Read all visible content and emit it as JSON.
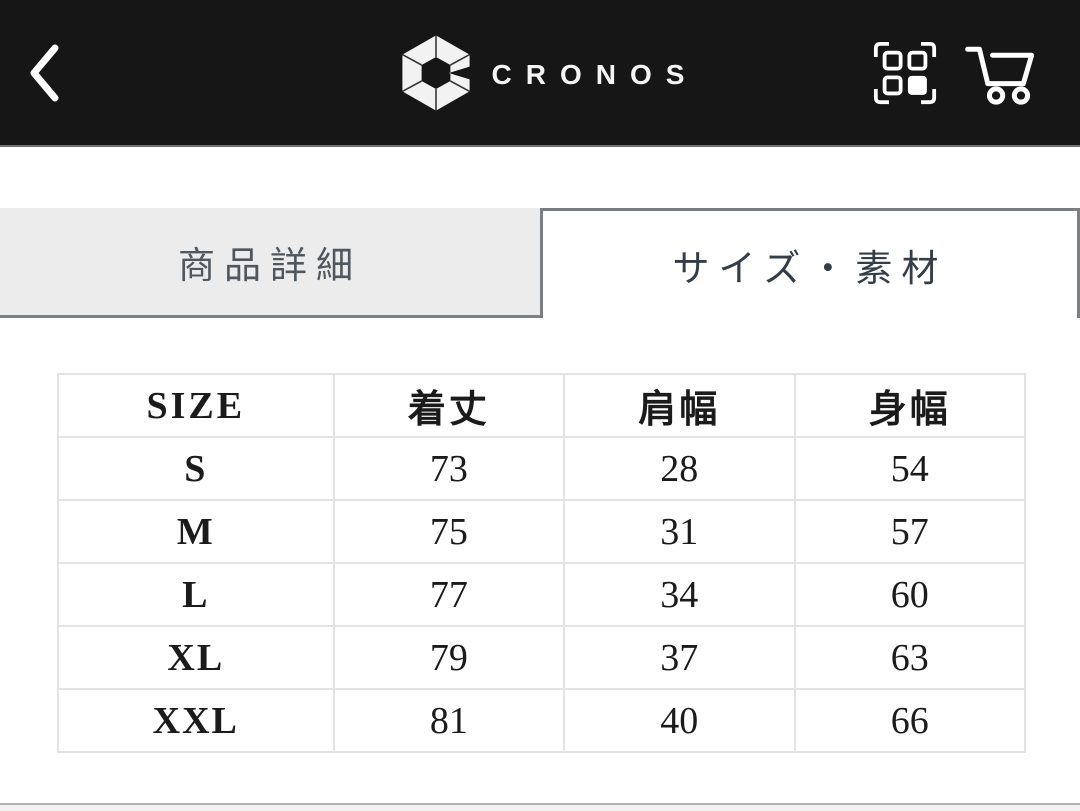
{
  "header": {
    "brand": "CRONOS",
    "back_icon": "chevron-left-icon",
    "scan_icon": "qr-scan-icon",
    "cart_icon": "shopping-cart-icon",
    "background_color": "#161616",
    "foreground_color": "#ffffff"
  },
  "tabs": [
    {
      "label": "商品詳細",
      "active": false
    },
    {
      "label": "サイズ・素材",
      "active": true
    }
  ],
  "size_table": {
    "columns": [
      "SIZE",
      "着丈",
      "肩幅",
      "身幅"
    ],
    "rows": [
      {
        "size": "S",
        "values": [
          "73",
          "28",
          "54"
        ]
      },
      {
        "size": "M",
        "values": [
          "75",
          "31",
          "57"
        ]
      },
      {
        "size": "L",
        "values": [
          "77",
          "34",
          "60"
        ]
      },
      {
        "size": "XL",
        "values": [
          "79",
          "37",
          "63"
        ]
      },
      {
        "size": "XXL",
        "values": [
          "81",
          "40",
          "66"
        ]
      }
    ]
  },
  "colors": {
    "tab_inactive_bg": "#ececec",
    "tab_border": "#7b7f81",
    "tab_active_text": "#343e49",
    "tab_inactive_text": "#4f575f",
    "table_border": "#e3e3e3",
    "table_text": "#1b1b1b"
  }
}
